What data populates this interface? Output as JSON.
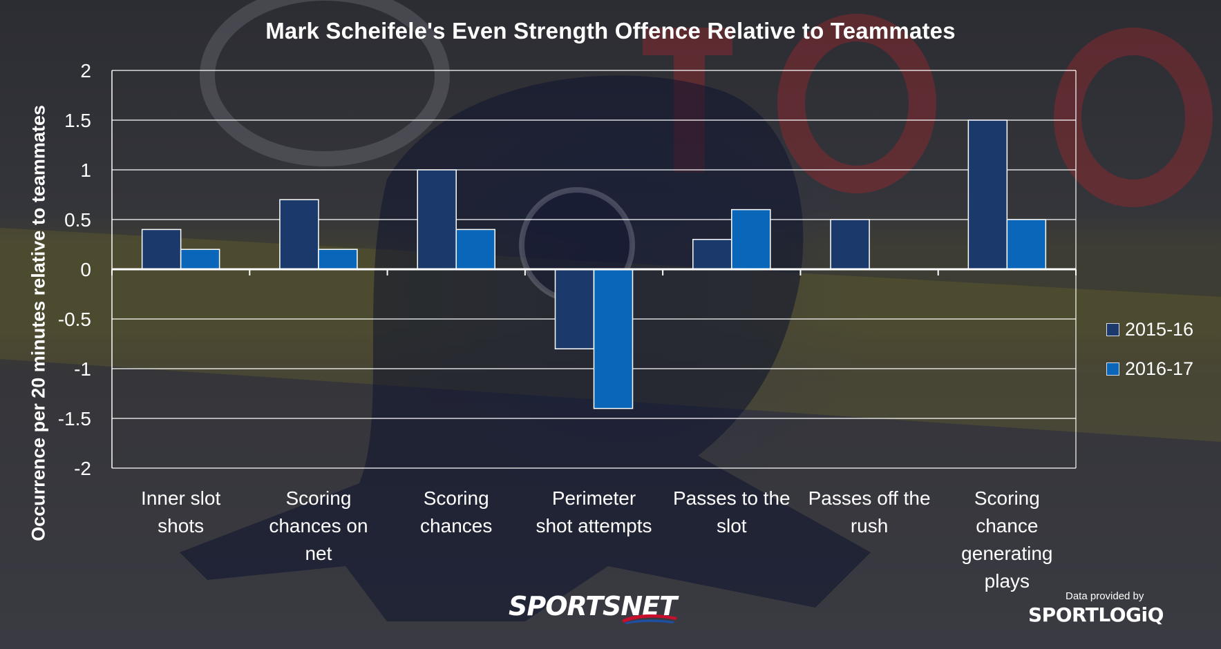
{
  "title": "Mark Scheifele's Even Strength Offence Relative to Teammates",
  "credits": {
    "broadcaster_logo": "SPORTSNET",
    "data_provider_label": "Data provided by",
    "data_provider_logo": "SPORTLOGiQ"
  },
  "colors": {
    "series_2015_16": "#1b3a6b",
    "series_2016_17": "#0a66b8",
    "gridline": "#ffffff",
    "text": "#ffffff"
  },
  "chart_data": {
    "type": "bar",
    "title": "Mark Scheifele's Even Strength Offence Relative to Teammates",
    "xlabel": "",
    "ylabel": "Occurrence per 20 minutes relative to teammates",
    "ylim": [
      -2,
      2
    ],
    "yticks": [
      "2",
      "1.5",
      "1",
      "0.5",
      "0",
      "-0.5",
      "-1",
      "-1.5",
      "-2"
    ],
    "ytick_values": [
      2,
      1.5,
      1,
      0.5,
      0,
      -0.5,
      -1,
      -1.5,
      -2
    ],
    "grid": true,
    "legend_position": "right",
    "categories": [
      [
        "Inner slot",
        "shots"
      ],
      [
        "Scoring",
        "chances on",
        "net"
      ],
      [
        "Scoring",
        "chances"
      ],
      [
        "Perimeter",
        "shot attempts"
      ],
      [
        "Passes to the",
        "slot"
      ],
      [
        "Passes off the",
        "rush"
      ],
      [
        "Scoring",
        "chance",
        "generating",
        "plays"
      ]
    ],
    "series": [
      {
        "name": "2015-16",
        "color": "#1b3a6b",
        "values": [
          0.4,
          0.7,
          1.0,
          -0.8,
          0.3,
          0.5,
          1.5
        ]
      },
      {
        "name": "2016-17",
        "color": "#0a66b8",
        "values": [
          0.2,
          0.2,
          0.4,
          -1.4,
          0.6,
          0.0,
          0.5
        ]
      }
    ]
  }
}
